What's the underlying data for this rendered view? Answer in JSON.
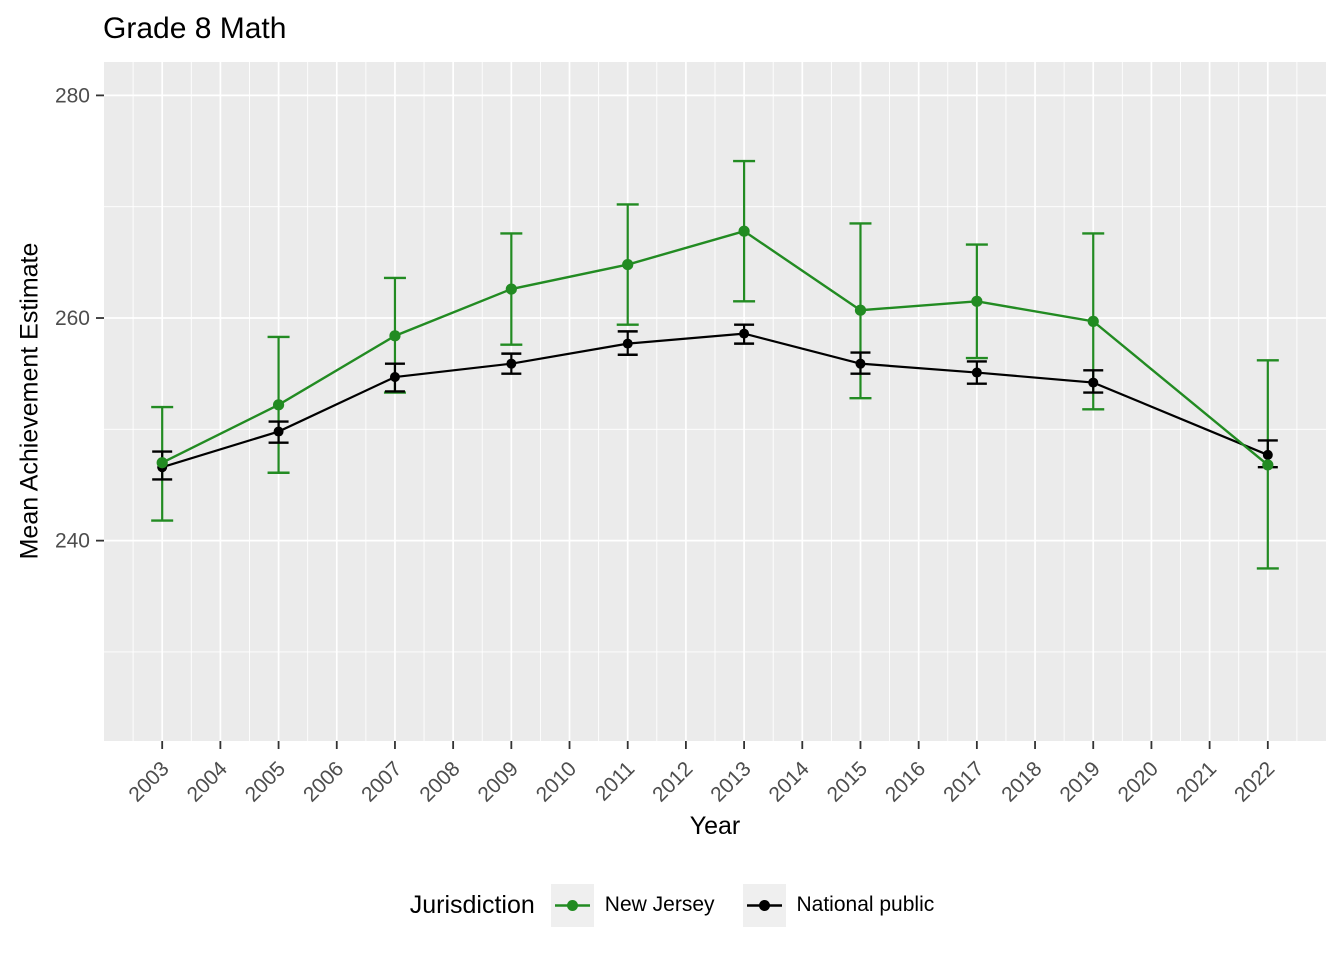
{
  "colors": {
    "panel_bg": "#ebebeb",
    "grid": "#ffffff",
    "axis_text": "#4d4d4d",
    "tick_mark": "#333333",
    "title_text": "#000000",
    "legend_key_bg": "#efefef",
    "new_jersey_green": "#228b22",
    "national_black": "#000000"
  },
  "chart_data": {
    "type": "line",
    "title": "Grade 8 Math",
    "xlabel": "Year",
    "ylabel": "Mean Achievement Estimate",
    "legend_title": "Jurisdiction",
    "legend_position": "bottom",
    "grid": "on",
    "error_bars": true,
    "xlim": [
      2002,
      2023
    ],
    "ylim": [
      222,
      283
    ],
    "x_ticks": [
      2003,
      2004,
      2005,
      2006,
      2007,
      2008,
      2009,
      2010,
      2011,
      2012,
      2013,
      2014,
      2015,
      2016,
      2017,
      2018,
      2019,
      2020,
      2021,
      2022
    ],
    "x_tick_labels": [
      "2003",
      "2004",
      "2005",
      "2006",
      "2007",
      "2008",
      "2009",
      "2010",
      "2011",
      "2012",
      "2013",
      "2014",
      "2015",
      "2016",
      "2017",
      "2018",
      "2019",
      "2020",
      "2021",
      "2022"
    ],
    "y_ticks": [
      240,
      260,
      280
    ],
    "y_tick_labels": [
      "240",
      "260",
      "280"
    ],
    "y_minor_ticks": [
      230,
      250,
      270
    ],
    "x": [
      2003,
      2005,
      2007,
      2009,
      2011,
      2013,
      2015,
      2017,
      2019,
      2022
    ],
    "series": [
      {
        "name": "New Jersey",
        "color": "#228b22",
        "marker_radius": 5.6,
        "values": [
          247.0,
          252.2,
          258.4,
          262.6,
          264.8,
          267.8,
          260.7,
          261.5,
          259.7,
          246.8
        ],
        "ci_low": [
          241.8,
          246.1,
          253.3,
          257.6,
          259.4,
          261.5,
          252.8,
          256.4,
          251.8,
          237.5
        ],
        "ci_high": [
          252.0,
          258.3,
          263.6,
          267.6,
          270.2,
          274.1,
          268.5,
          266.6,
          267.6,
          256.2
        ],
        "cap_half_width": 11
      },
      {
        "name": "National public",
        "color": "#000000",
        "marker_radius": 5.0,
        "values": [
          246.6,
          249.8,
          254.7,
          255.9,
          257.7,
          258.6,
          255.9,
          255.1,
          254.2,
          247.7
        ],
        "ci_low": [
          245.5,
          248.8,
          253.4,
          255.0,
          256.7,
          257.7,
          255.0,
          254.1,
          253.3,
          246.6
        ],
        "ci_high": [
          248.0,
          250.7,
          255.9,
          256.8,
          258.8,
          259.4,
          256.9,
          256.1,
          255.3,
          249.0
        ],
        "cap_half_width": 10
      }
    ]
  }
}
